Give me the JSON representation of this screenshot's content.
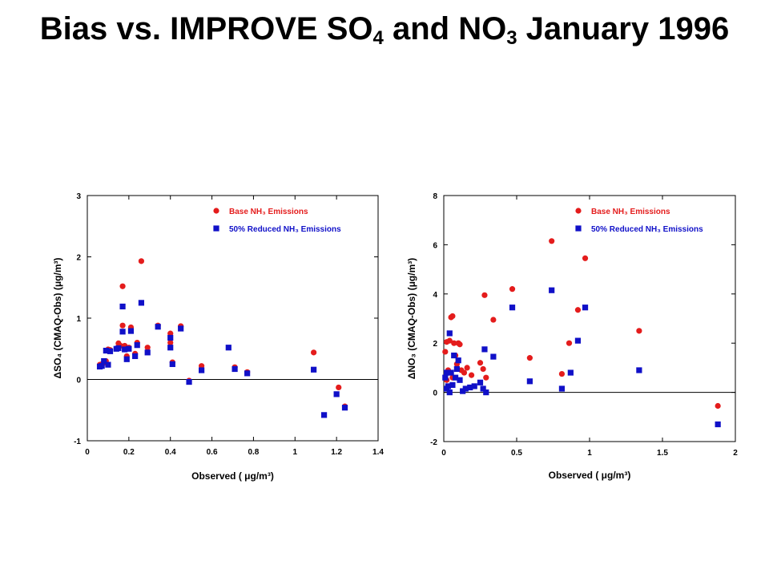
{
  "title": {
    "part1": "Bias vs. IMPROVE SO",
    "sub1": "4",
    "part2": " and NO",
    "sub2": "3",
    "part3": " January 1996"
  },
  "colors": {
    "base": "#e41c1c",
    "reduced": "#1010c8",
    "axis": "#000000",
    "background": "#ffffff"
  },
  "chart_data": [
    {
      "type": "scatter",
      "id": "so4",
      "xlabel": "Observed ( μg/m³)",
      "ylabel": "ΔSO₄ (CMAQ-Obs) (μg/m³)",
      "xlim": [
        0,
        1.4
      ],
      "ylim": [
        -1,
        3
      ],
      "xticks": [
        "0",
        "0.2",
        "0.4",
        "0.6",
        "0.8",
        "1",
        "1.2",
        "1.4"
      ],
      "yticks": [
        "-1",
        "0",
        "1",
        "2",
        "3"
      ],
      "zero_line": true,
      "grid": false,
      "legend_position": "top-right",
      "series": [
        {
          "name": "Base NH₃ Emissions",
          "marker": "circle",
          "color": "#e41c1c",
          "points": [
            [
              0.06,
              0.24
            ],
            [
              0.07,
              0.25
            ],
            [
              0.08,
              0.27
            ],
            [
              0.09,
              0.3
            ],
            [
              0.1,
              0.49
            ],
            [
              0.11,
              0.48
            ],
            [
              0.15,
              0.59
            ],
            [
              0.16,
              0.55
            ],
            [
              0.17,
              0.88
            ],
            [
              0.17,
              1.52
            ],
            [
              0.18,
              0.55
            ],
            [
              0.19,
              0.38
            ],
            [
              0.2,
              0.52
            ],
            [
              0.21,
              0.85
            ],
            [
              0.23,
              0.42
            ],
            [
              0.24,
              0.6
            ],
            [
              0.26,
              1.93
            ],
            [
              0.29,
              0.52
            ],
            [
              0.34,
              0.88
            ],
            [
              0.4,
              0.75
            ],
            [
              0.4,
              0.6
            ],
            [
              0.41,
              0.28
            ],
            [
              0.45,
              0.87
            ],
            [
              0.49,
              -0.02
            ],
            [
              0.55,
              0.22
            ],
            [
              0.71,
              0.2
            ],
            [
              0.77,
              0.12
            ],
            [
              1.09,
              0.44
            ],
            [
              1.21,
              -0.13
            ],
            [
              1.24,
              -0.44
            ]
          ]
        },
        {
          "name": "50% Reduced NH₃ Emissions",
          "marker": "square",
          "color": "#1010c8",
          "points": [
            [
              0.06,
              0.21
            ],
            [
              0.07,
              0.22
            ],
            [
              0.08,
              0.3
            ],
            [
              0.09,
              0.47
            ],
            [
              0.1,
              0.24
            ],
            [
              0.11,
              0.46
            ],
            [
              0.14,
              0.5
            ],
            [
              0.15,
              0.51
            ],
            [
              0.17,
              0.78
            ],
            [
              0.17,
              1.19
            ],
            [
              0.18,
              0.49
            ],
            [
              0.19,
              0.33
            ],
            [
              0.2,
              0.5
            ],
            [
              0.21,
              0.79
            ],
            [
              0.23,
              0.38
            ],
            [
              0.24,
              0.56
            ],
            [
              0.26,
              1.25
            ],
            [
              0.29,
              0.44
            ],
            [
              0.34,
              0.86
            ],
            [
              0.4,
              0.68
            ],
            [
              0.4,
              0.52
            ],
            [
              0.41,
              0.25
            ],
            [
              0.45,
              0.83
            ],
            [
              0.49,
              -0.04
            ],
            [
              0.55,
              0.15
            ],
            [
              0.68,
              0.52
            ],
            [
              0.71,
              0.17
            ],
            [
              0.77,
              0.1
            ],
            [
              1.09,
              0.16
            ],
            [
              1.14,
              -0.58
            ],
            [
              1.2,
              -0.24
            ],
            [
              1.24,
              -0.46
            ]
          ]
        }
      ]
    },
    {
      "type": "scatter",
      "id": "no3",
      "xlabel": "Observed ( μg/m³)",
      "ylabel": "ΔNO₃ (CMAQ-Obs) (μg/m³)",
      "xlim": [
        0,
        2
      ],
      "ylim": [
        -2,
        8
      ],
      "xticks": [
        "0",
        "0.5",
        "1",
        "1.5",
        "2"
      ],
      "yticks": [
        "-2",
        "0",
        "2",
        "4",
        "6",
        "8"
      ],
      "zero_line": true,
      "grid": false,
      "legend_position": "top-right",
      "series": [
        {
          "name": "Base NH₃ Emissions",
          "marker": "circle",
          "color": "#e41c1c",
          "points": [
            [
              0.01,
              1.65
            ],
            [
              0.02,
              2.05
            ],
            [
              0.02,
              0.5
            ],
            [
              0.03,
              0.9
            ],
            [
              0.04,
              2.1
            ],
            [
              0.05,
              3.05
            ],
            [
              0.06,
              3.1
            ],
            [
              0.06,
              0.6
            ],
            [
              0.07,
              2.0
            ],
            [
              0.08,
              1.5
            ],
            [
              0.09,
              1.15
            ],
            [
              0.1,
              2.0
            ],
            [
              0.11,
              1.95
            ],
            [
              0.12,
              0.9
            ],
            [
              0.14,
              0.8
            ],
            [
              0.16,
              1.0
            ],
            [
              0.19,
              0.7
            ],
            [
              0.25,
              1.2
            ],
            [
              0.27,
              0.95
            ],
            [
              0.28,
              3.95
            ],
            [
              0.29,
              0.6
            ],
            [
              0.34,
              2.95
            ],
            [
              0.47,
              4.2
            ],
            [
              0.59,
              1.4
            ],
            [
              0.74,
              6.15
            ],
            [
              0.81,
              0.75
            ],
            [
              0.86,
              2.0
            ],
            [
              0.92,
              3.35
            ],
            [
              0.97,
              5.45
            ],
            [
              1.34,
              2.5
            ],
            [
              1.88,
              -0.55
            ]
          ]
        },
        {
          "name": "50% Reduced NH₃ Emissions",
          "marker": "square",
          "color": "#1010c8",
          "points": [
            [
              0.01,
              0.6
            ],
            [
              0.02,
              0.8
            ],
            [
              0.02,
              0.15
            ],
            [
              0.03,
              0.25
            ],
            [
              0.04,
              0.0
            ],
            [
              0.04,
              2.4
            ],
            [
              0.05,
              0.8
            ],
            [
              0.06,
              0.3
            ],
            [
              0.07,
              1.5
            ],
            [
              0.08,
              0.6
            ],
            [
              0.09,
              0.95
            ],
            [
              0.1,
              1.3
            ],
            [
              0.11,
              0.5
            ],
            [
              0.13,
              0.05
            ],
            [
              0.15,
              0.15
            ],
            [
              0.18,
              0.2
            ],
            [
              0.21,
              0.25
            ],
            [
              0.25,
              0.4
            ],
            [
              0.27,
              0.15
            ],
            [
              0.28,
              1.75
            ],
            [
              0.29,
              0.0
            ],
            [
              0.34,
              1.45
            ],
            [
              0.47,
              3.45
            ],
            [
              0.59,
              0.45
            ],
            [
              0.74,
              4.15
            ],
            [
              0.81,
              0.15
            ],
            [
              0.87,
              0.8
            ],
            [
              0.92,
              2.1
            ],
            [
              0.97,
              3.45
            ],
            [
              1.34,
              0.9
            ],
            [
              1.88,
              -1.3
            ]
          ]
        }
      ]
    }
  ]
}
